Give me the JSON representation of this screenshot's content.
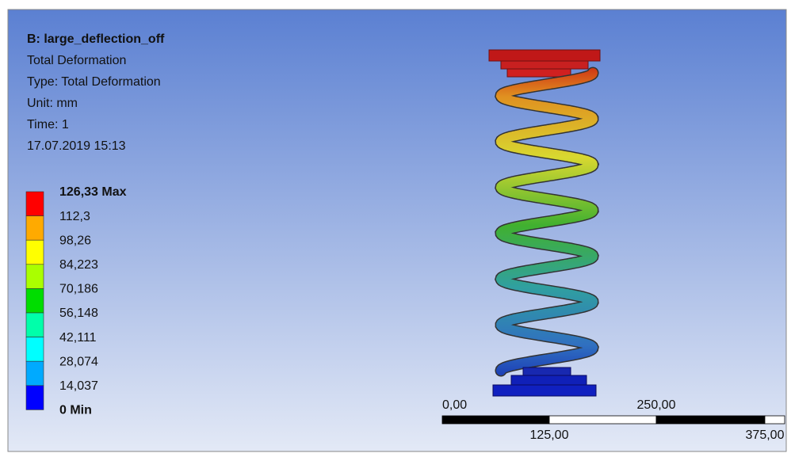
{
  "header": {
    "title": "B: large_deflection_off",
    "lines": [
      "Total Deformation",
      "Type: Total Deformation",
      "Unit: mm",
      "Time: 1",
      "17.07.2019 15:13"
    ]
  },
  "legend": {
    "labels": [
      "126,33 Max",
      "112,3",
      "98,26",
      "84,223",
      "70,186",
      "56,148",
      "42,111",
      "28,074",
      "14,037",
      "0 Min"
    ],
    "colors": [
      "#ff0000",
      "#ffaa00",
      "#ffff00",
      "#aaff00",
      "#00dd00",
      "#00ffaa",
      "#00ffff",
      "#00aaff",
      "#0000ff"
    ]
  },
  "scale": {
    "top": [
      "0,00",
      "250,00"
    ],
    "bottom": [
      "125,00",
      "375,00"
    ]
  }
}
